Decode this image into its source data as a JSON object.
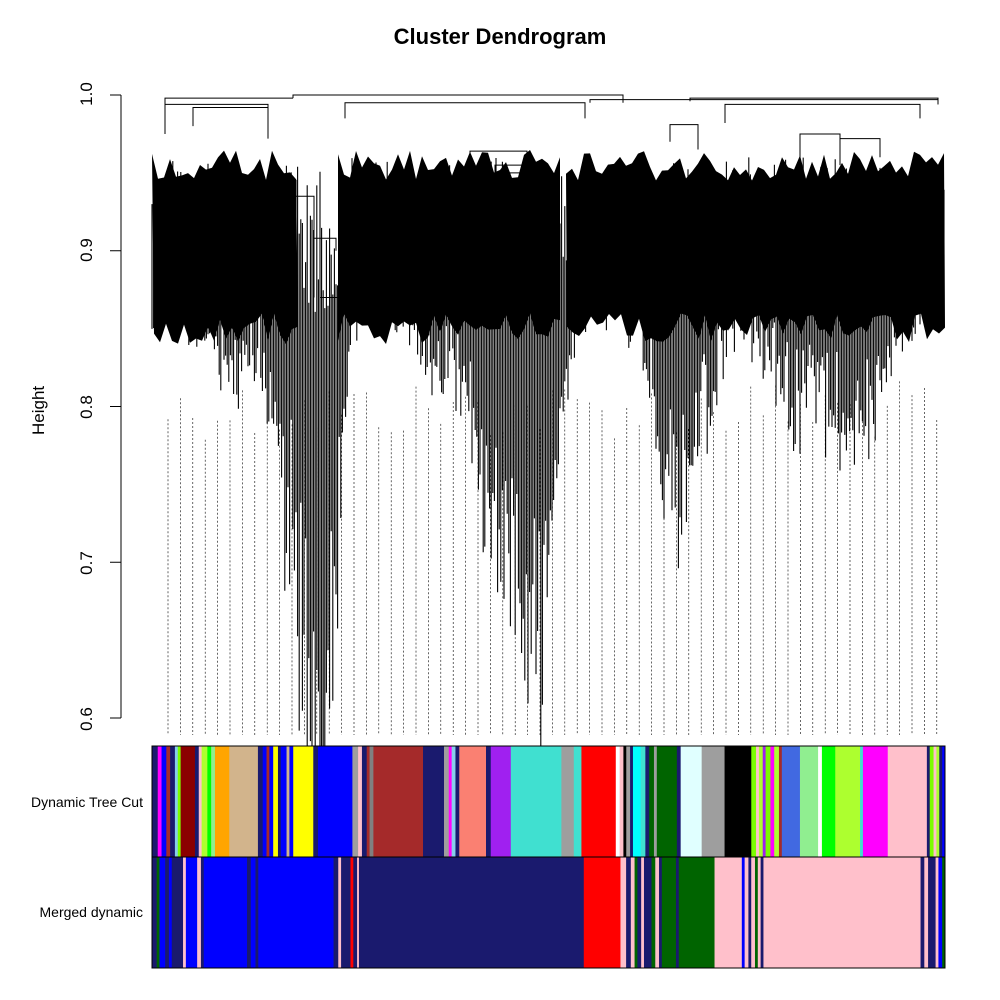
{
  "chart_data": {
    "type": "dendrogram",
    "title": "Cluster Dendrogram",
    "ylabel": "Height",
    "ylim": [
      0.6,
      1.0
    ],
    "yticks": [
      "0.6",
      "0.7",
      "0.8",
      "0.9",
      "1.0"
    ],
    "color_rows": [
      {
        "label": "Dynamic Tree Cut",
        "segments": [
          {
            "color": "#1a1a6e",
            "w": 0.6
          },
          {
            "color": "#ff00ff",
            "w": 0.4
          },
          {
            "color": "#0000ff",
            "w": 0.5
          },
          {
            "color": "#a52a2a",
            "w": 0.4
          },
          {
            "color": "#1a1a6e",
            "w": 0.5
          },
          {
            "color": "#87ceeb",
            "w": 0.3
          },
          {
            "color": "#7cfc00",
            "w": 0.3
          },
          {
            "color": "#8b0000",
            "w": 1.5
          },
          {
            "color": "#1a1a6e",
            "w": 0.4
          },
          {
            "color": "#ffc0cb",
            "w": 0.3
          },
          {
            "color": "#adff2f",
            "w": 0.6
          },
          {
            "color": "#00ff00",
            "w": 0.4
          },
          {
            "color": "#90ee90",
            "w": 0.4
          },
          {
            "color": "#ffa500",
            "w": 1.5
          },
          {
            "color": "#d2b48c",
            "w": 3.0
          },
          {
            "color": "#1a1a6e",
            "w": 0.5
          },
          {
            "color": "#0000ff",
            "w": 0.4
          },
          {
            "color": "#a52a2a",
            "w": 0.3
          },
          {
            "color": "#0000ff",
            "w": 0.4
          },
          {
            "color": "#ffff00",
            "w": 0.5
          },
          {
            "color": "#1a1a6e",
            "w": 0.3
          },
          {
            "color": "#0000ff",
            "w": 0.6
          },
          {
            "color": "#d2b48c",
            "w": 0.3
          },
          {
            "color": "#0000ff",
            "w": 0.4
          },
          {
            "color": "#ffff00",
            "w": 2.1
          },
          {
            "color": "#1a1a6e",
            "w": 0.5
          },
          {
            "color": "#0000ff",
            "w": 3.6
          },
          {
            "color": "#9e9e9e",
            "w": 0.6
          },
          {
            "color": "#ffc0cb",
            "w": 0.4
          },
          {
            "color": "#1a1a6e",
            "w": 0.5
          },
          {
            "color": "#a52a2a",
            "w": 0.3
          },
          {
            "color": "#808080",
            "w": 0.4
          },
          {
            "color": "#a52a2a",
            "w": 5.2
          },
          {
            "color": "#1a1a6e",
            "w": 2.2
          },
          {
            "color": "#9e9e9e",
            "w": 0.5
          },
          {
            "color": "#ff00ff",
            "w": 0.3
          },
          {
            "color": "#87ceeb",
            "w": 0.4
          },
          {
            "color": "#1a1a6e",
            "w": 0.4
          },
          {
            "color": "#fa8072",
            "w": 2.8
          },
          {
            "color": "#1a1a6e",
            "w": 0.5
          },
          {
            "color": "#a020f0",
            "w": 2.1
          },
          {
            "color": "#40e0d0",
            "w": 5.3
          },
          {
            "color": "#9e9e9e",
            "w": 1.3
          },
          {
            "color": "#40e0d0",
            "w": 0.8
          },
          {
            "color": "#ff0000",
            "w": 3.6
          },
          {
            "color": "#ffffff",
            "w": 0.4
          },
          {
            "color": "#ffc0cb",
            "w": 0.4
          },
          {
            "color": "#000000",
            "w": 0.3
          },
          {
            "color": "#9e9e9e",
            "w": 0.4
          },
          {
            "color": "#1a1a6e",
            "w": 0.3
          },
          {
            "color": "#00ffff",
            "w": 0.8
          },
          {
            "color": "#40e0d0",
            "w": 0.5
          },
          {
            "color": "#1a1a6e",
            "w": 0.4
          },
          {
            "color": "#006400",
            "w": 0.5
          },
          {
            "color": "#9e9e9e",
            "w": 0.3
          },
          {
            "color": "#006400",
            "w": 2.1
          },
          {
            "color": "#1a1a6e",
            "w": 0.4
          },
          {
            "color": "#e0ffff",
            "w": 2.2
          },
          {
            "color": "#9e9e9e",
            "w": 2.4
          },
          {
            "color": "#000000",
            "w": 2.8
          },
          {
            "color": "#7cfc00",
            "w": 0.5
          },
          {
            "color": "#ffc0cb",
            "w": 0.3
          },
          {
            "color": "#adff2f",
            "w": 0.4
          },
          {
            "color": "#a020f0",
            "w": 0.3
          },
          {
            "color": "#7cfc00",
            "w": 0.5
          },
          {
            "color": "#ff00ff",
            "w": 0.4
          },
          {
            "color": "#adff2f",
            "w": 0.5
          },
          {
            "color": "#a52a2a",
            "w": 0.3
          },
          {
            "color": "#4169e1",
            "w": 1.9
          },
          {
            "color": "#90ee90",
            "w": 1.9
          },
          {
            "color": "#ffffff",
            "w": 0.4
          },
          {
            "color": "#00ff00",
            "w": 1.4
          },
          {
            "color": "#adff2f",
            "w": 2.6
          },
          {
            "color": "#40e0d0",
            "w": 0.3
          },
          {
            "color": "#ff00ff",
            "w": 2.6
          },
          {
            "color": "#ffc0cb",
            "w": 4.1
          },
          {
            "color": "#1a1a6e",
            "w": 0.3
          },
          {
            "color": "#7cfc00",
            "w": 0.4
          },
          {
            "color": "#ffc0cb",
            "w": 0.3
          },
          {
            "color": "#adff2f",
            "w": 0.3
          },
          {
            "color": "#1a1a6e",
            "w": 0.3
          },
          {
            "color": "#0000ff",
            "w": 0.3
          }
        ]
      },
      {
        "label": "Merged dynamic",
        "segments": [
          {
            "color": "#1a1a6e",
            "w": 0.5
          },
          {
            "color": "#006400",
            "w": 0.3
          },
          {
            "color": "#0000ff",
            "w": 0.6
          },
          {
            "color": "#1a1a6e",
            "w": 0.4
          },
          {
            "color": "#0000ff",
            "w": 0.3
          },
          {
            "color": "#1a1a6e",
            "w": 1.2
          },
          {
            "color": "#ffc0cb",
            "w": 0.3
          },
          {
            "color": "#0000ff",
            "w": 1.2
          },
          {
            "color": "#ffc0cb",
            "w": 0.4
          },
          {
            "color": "#1a1a6e",
            "w": 0.3
          },
          {
            "color": "#0000ff",
            "w": 4.6
          },
          {
            "color": "#1a1a6e",
            "w": 0.4
          },
          {
            "color": "#0000ff",
            "w": 0.5
          },
          {
            "color": "#1a1a6e",
            "w": 0.3
          },
          {
            "color": "#0000ff",
            "w": 8.0
          },
          {
            "color": "#1a1a6e",
            "w": 0.5
          },
          {
            "color": "#ffc0cb",
            "w": 0.3
          },
          {
            "color": "#1a1a6e",
            "w": 1.0
          },
          {
            "color": "#ff0000",
            "w": 0.3
          },
          {
            "color": "#1a1a6e",
            "w": 0.4
          },
          {
            "color": "#ffc0cb",
            "w": 0.2
          },
          {
            "color": "#1a1a6e",
            "w": 23.9
          },
          {
            "color": "#ff0000",
            "w": 3.9
          },
          {
            "color": "#ffc0cb",
            "w": 0.6
          },
          {
            "color": "#1a1a6e",
            "w": 0.5
          },
          {
            "color": "#ffc0cb",
            "w": 0.4
          },
          {
            "color": "#006400",
            "w": 0.3
          },
          {
            "color": "#1a1a6e",
            "w": 0.4
          },
          {
            "color": "#ffc0cb",
            "w": 0.3
          },
          {
            "color": "#1a1a6e",
            "w": 0.8
          },
          {
            "color": "#006400",
            "w": 0.4
          },
          {
            "color": "#ffc0cb",
            "w": 0.4
          },
          {
            "color": "#1a1a6e",
            "w": 0.3
          },
          {
            "color": "#006400",
            "w": 1.5
          },
          {
            "color": "#1a1a6e",
            "w": 0.3
          },
          {
            "color": "#006400",
            "w": 3.8
          },
          {
            "color": "#ffc0cb",
            "w": 2.9
          },
          {
            "color": "#0000ff",
            "w": 0.3
          },
          {
            "color": "#ffc0cb",
            "w": 0.4
          },
          {
            "color": "#1a1a6e",
            "w": 0.3
          },
          {
            "color": "#ffc0cb",
            "w": 0.4
          },
          {
            "color": "#006400",
            "w": 0.3
          },
          {
            "color": "#ffc0cb",
            "w": 0.3
          },
          {
            "color": "#1a1a6e",
            "w": 0.3
          },
          {
            "color": "#ffc0cb",
            "w": 16.7
          },
          {
            "color": "#1a1a6e",
            "w": 0.4
          },
          {
            "color": "#ffc0cb",
            "w": 0.4
          },
          {
            "color": "#1a1a6e",
            "w": 0.8
          },
          {
            "color": "#ffc0cb",
            "w": 0.3
          },
          {
            "color": "#0000ff",
            "w": 0.4
          },
          {
            "color": "#006400",
            "w": 0.3
          }
        ]
      }
    ]
  }
}
